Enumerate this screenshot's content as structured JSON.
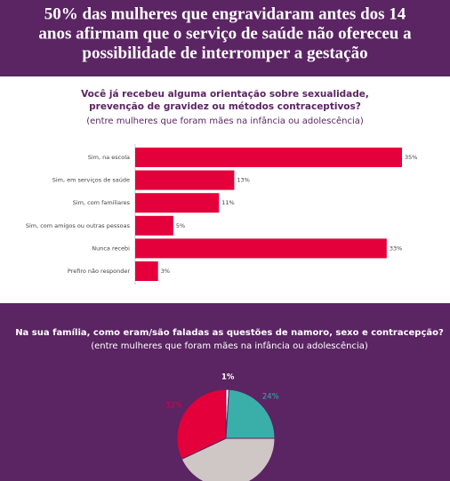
{
  "header": {
    "title": [
      "50% das mulheres que engravidaram antes dos 14",
      "anos afirmam que o serviço de saúde não ofereceu a",
      "possibilidade de interromper a gestação"
    ]
  },
  "chart_data": [
    {
      "type": "bar",
      "orientation": "horizontal",
      "title": [
        "Você já recebeu alguma orientação sobre sexualidade,",
        "prevenção de gravidez ou métodos contraceptivos?"
      ],
      "subtitle": "(entre mulheres que foram mães na infância ou adolescência)",
      "categories": [
        "Sim, na escola",
        "Sim, em serviços de saúde",
        "Sim, com familiares",
        "Sim, com amigos ou outras pessoas",
        "Nunca recebi",
        "Prefiro não responder"
      ],
      "values": [
        35,
        13,
        11,
        5,
        33,
        3
      ],
      "value_labels": [
        "35%",
        "13%",
        "11%",
        "5%",
        "33%",
        "3%"
      ],
      "color": "#e4003b"
    },
    {
      "type": "pie",
      "title": "Na sua família, como eram/são faladas as questões de namoro, sexo e contracepção?",
      "subtitle": "(entre mulheres que foram mães na infância ou adolescência)",
      "values": [
        1,
        24,
        43,
        32
      ],
      "value_labels": [
        "1%",
        "24%",
        null,
        "32%"
      ],
      "colors": [
        "#ffffff",
        "#3aafa9",
        "#cfc6c6",
        "#e4003b"
      ]
    }
  ]
}
